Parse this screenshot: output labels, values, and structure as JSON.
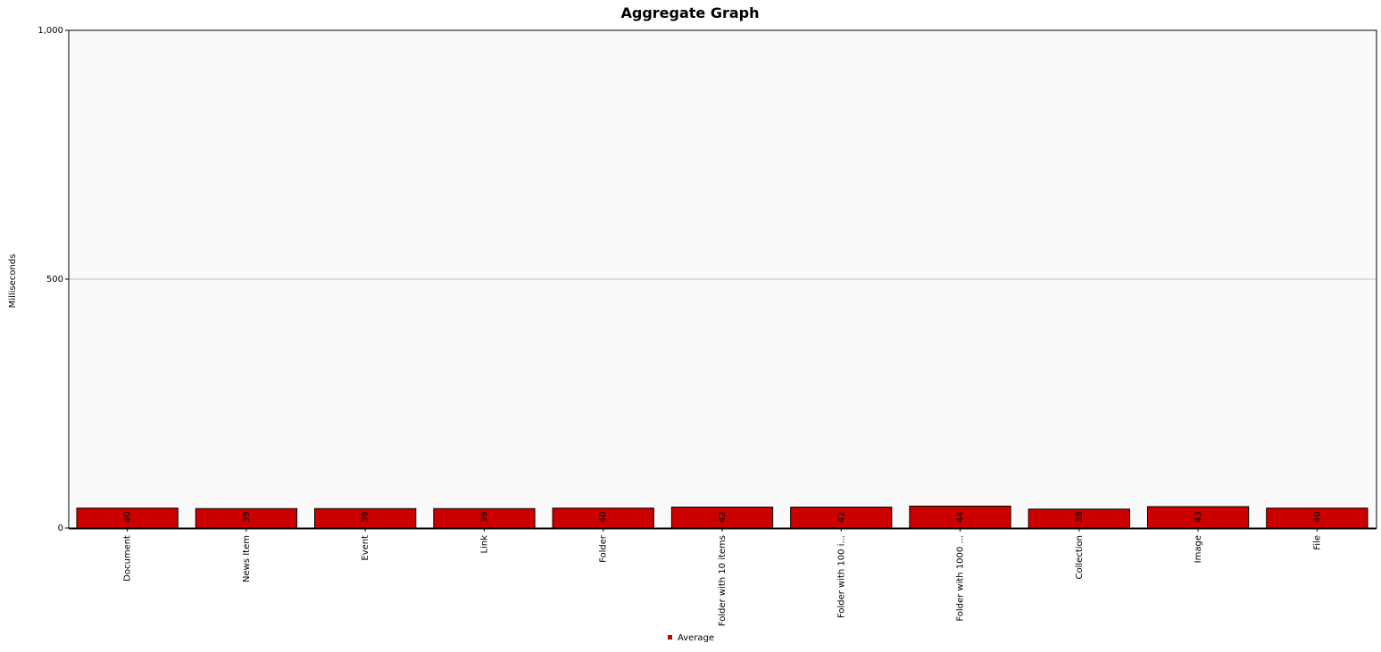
{
  "chart_data": {
    "type": "bar",
    "title": "Aggregate Graph",
    "xlabel": "",
    "ylabel": "Milliseconds",
    "ylim": [
      0,
      1000
    ],
    "yticks": [
      {
        "value": 0,
        "label": "0"
      },
      {
        "value": 500,
        "label": "500"
      },
      {
        "value": 1000,
        "label": "1,000"
      }
    ],
    "grid": true,
    "legend_position": "bottom-center",
    "categories": [
      "Document",
      "News Item",
      "Event",
      "Link",
      "Folder",
      "Folder with 10 items",
      "Folder with 100 i...",
      "Folder with 1000 ...",
      "Collection",
      "Image",
      "File"
    ],
    "series": [
      {
        "name": "Average",
        "color": "#cc0000",
        "values": [
          40,
          39,
          39,
          39,
          40,
          42,
          42,
          44,
          38,
          43,
          40
        ]
      }
    ]
  }
}
